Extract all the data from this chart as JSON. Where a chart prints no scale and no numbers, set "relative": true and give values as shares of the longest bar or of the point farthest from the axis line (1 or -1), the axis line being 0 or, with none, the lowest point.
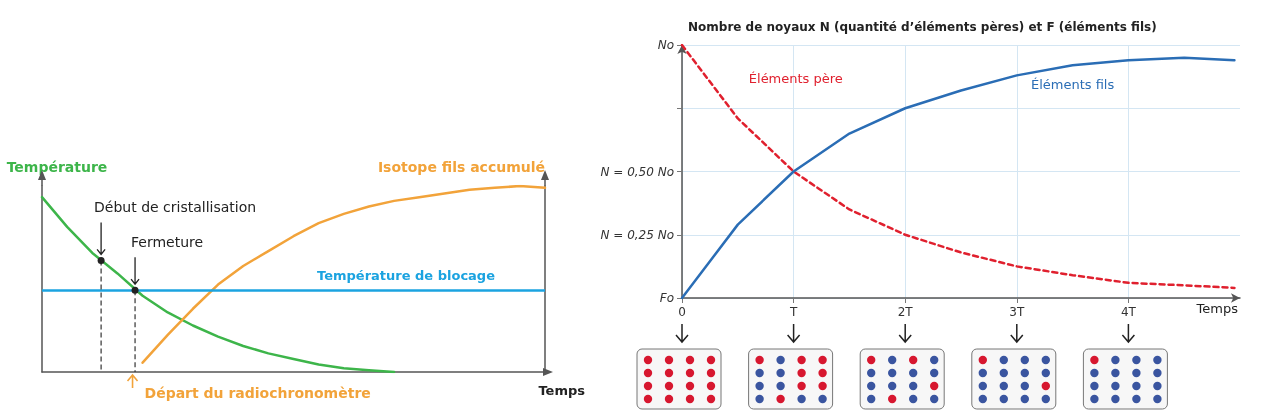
{
  "chart_data": [
    {
      "type": "line",
      "relative": true,
      "marker": "none",
      "ylabel": "Température",
      "y2label": "Isotope fils accumulé",
      "xlabel": "Temps",
      "categories": [
        null,
        null,
        null,
        null,
        null,
        null,
        null,
        null,
        null,
        null,
        null,
        null,
        null,
        null,
        null,
        null,
        null,
        null,
        null,
        null,
        null
      ],
      "series": [
        {
          "color": "#3db54a",
          "line_style": "solid",
          "values": [
            0.94,
            0.78,
            0.64,
            0.53,
            0.41,
            0.32,
            0.25,
            0.19,
            0.14,
            0.1,
            0.07,
            0.04,
            0.02,
            0.01,
            0,
            null,
            null,
            null,
            null,
            null,
            null
          ]
        },
        {
          "color": "#f2a33a",
          "line_style": "solid",
          "values": [
            null,
            null,
            null,
            null,
            0.05,
            0.2,
            0.34,
            0.47,
            0.57,
            0.65,
            0.73,
            0.8,
            0.85,
            0.89,
            0.92,
            0.94,
            0.96,
            0.98,
            0.99,
            1,
            0.99
          ]
        }
      ],
      "ref_lines": [
        {
          "axis": "y",
          "value": 0.44,
          "label": "Température de blocage",
          "color": "#1ba3e0"
        }
      ],
      "annotations": [
        "Début de cristallisation",
        "Fermeture",
        "Départ du radiochronomètre"
      ]
    },
    {
      "type": "line",
      "marker": "none",
      "grid": true,
      "ylabel": "Nombre de noyaux N (quantité d’éléments pères) et F (éléments fils)",
      "xlabel": "Temps",
      "x": [
        0,
        0.5,
        1,
        1.5,
        2,
        2.5,
        3,
        3.5,
        4,
        4.5,
        4.95
      ],
      "xlim": [
        0,
        5
      ],
      "xticks": [
        0,
        {
          "value": 1,
          "label": "T"
        },
        {
          "value": 2,
          "label": "2T"
        },
        {
          "value": 3,
          "label": "3T"
        },
        {
          "value": 4,
          "label": "4T"
        }
      ],
      "ylim": [
        0,
        1
      ],
      "yticks": [
        {
          "value": 0,
          "label": "Fo"
        },
        {
          "value": 0.25,
          "label": "N = 0,25 No"
        },
        {
          "value": 0.5,
          "label": "N = 0,50 No"
        },
        {
          "value": 0.75,
          "label": null
        },
        {
          "value": 1,
          "label": "No"
        }
      ],
      "series": [
        {
          "name": "Éléments père",
          "color": "#e0202e",
          "line_style": "dashed",
          "values": [
            1,
            0.71,
            0.5,
            0.35,
            0.25,
            0.18,
            0.125,
            0.09,
            0.06,
            0.05,
            0.04
          ]
        },
        {
          "name": "Éléments fils",
          "color": "#2a6db5",
          "line_style": "solid",
          "values": [
            0,
            0.29,
            0.5,
            0.65,
            0.75,
            0.82,
            0.88,
            0.92,
            0.94,
            0.95,
            0.94
          ]
        }
      ]
    }
  ]
}
